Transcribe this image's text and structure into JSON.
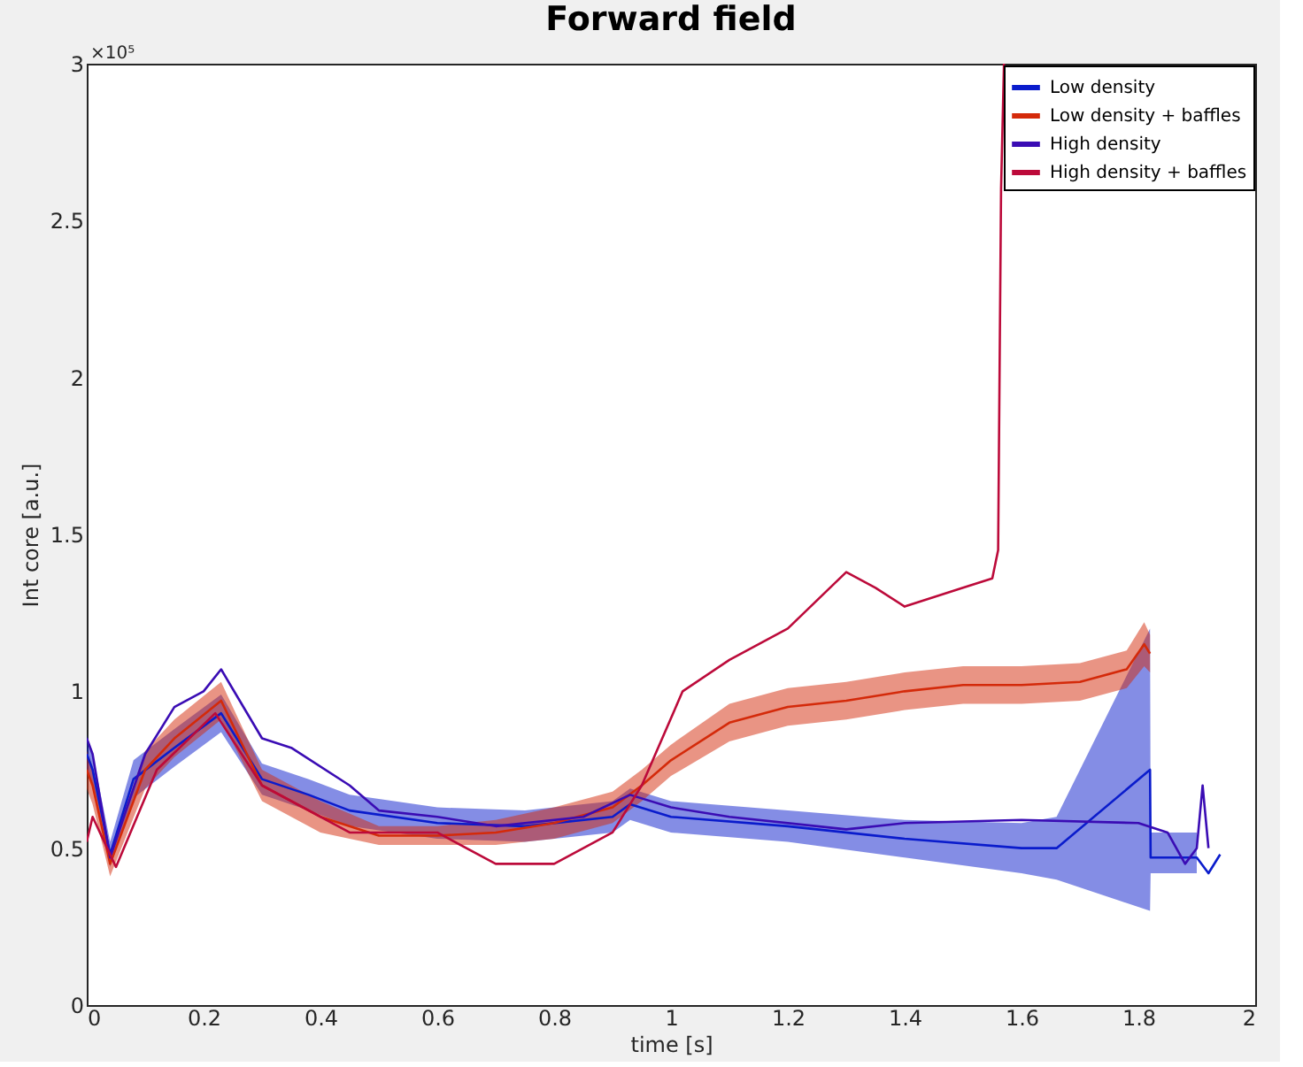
{
  "chart_data": {
    "type": "line",
    "title": "Forward field",
    "xlabel": "time [s]",
    "ylabel": "Int core [a.u.]",
    "annotations": [
      "×10⁵"
    ],
    "xlim": [
      0,
      2
    ],
    "xticks": [
      0,
      0.2,
      0.4,
      0.6,
      0.8,
      1,
      1.2,
      1.4,
      1.6,
      1.8,
      2
    ],
    "ylim": [
      0,
      3
    ],
    "yticks": [
      0,
      0.5,
      1,
      1.5,
      2,
      2.5,
      3
    ],
    "grid": false,
    "legend": "top right",
    "series": [
      {
        "name": "Low density",
        "color": "#0a1ccc",
        "x": [
          0,
          0.01,
          0.04,
          0.08,
          0.15,
          0.23,
          0.3,
          0.38,
          0.45,
          0.6,
          0.75,
          0.9,
          0.93,
          1.0,
          1.2,
          1.4,
          1.6,
          1.66,
          1.82,
          1.821,
          1.9,
          1.92,
          1.94
        ],
        "values": [
          0.8,
          0.75,
          0.48,
          0.72,
          0.82,
          0.93,
          0.72,
          0.67,
          0.62,
          0.58,
          0.57,
          0.6,
          0.64,
          0.6,
          0.57,
          0.53,
          0.5,
          0.5,
          0.75,
          0.47,
          0.47,
          0.42,
          0.48
        ],
        "lower": [
          0.74,
          0.7,
          0.44,
          0.66,
          0.76,
          0.87,
          0.67,
          0.62,
          0.57,
          0.53,
          0.52,
          0.55,
          0.59,
          0.55,
          0.52,
          0.47,
          0.42,
          0.4,
          0.3,
          0.42,
          0.42,
          null,
          null
        ],
        "upper": [
          0.86,
          0.8,
          0.52,
          0.78,
          0.88,
          0.99,
          0.77,
          0.72,
          0.67,
          0.63,
          0.62,
          0.65,
          0.69,
          0.65,
          0.62,
          0.59,
          0.58,
          0.6,
          1.2,
          0.55,
          0.55,
          null,
          null
        ]
      },
      {
        "name": "Low density + baffles",
        "color": "#d42a0a",
        "x": [
          0,
          0.01,
          0.04,
          0.1,
          0.15,
          0.23,
          0.3,
          0.4,
          0.5,
          0.6,
          0.7,
          0.8,
          0.9,
          0.95,
          1.0,
          1.1,
          1.2,
          1.3,
          1.4,
          1.5,
          1.6,
          1.7,
          1.78,
          1.81,
          1.82
        ],
        "values": [
          0.75,
          0.7,
          0.45,
          0.75,
          0.85,
          0.97,
          0.7,
          0.6,
          0.54,
          0.54,
          0.55,
          0.58,
          0.63,
          0.7,
          0.78,
          0.9,
          0.95,
          0.97,
          1.0,
          1.02,
          1.02,
          1.03,
          1.07,
          1.15,
          1.12
        ],
        "lower": [
          0.69,
          0.64,
          0.41,
          0.69,
          0.79,
          0.91,
          0.65,
          0.55,
          0.51,
          0.51,
          0.51,
          0.53,
          0.58,
          0.65,
          0.73,
          0.84,
          0.89,
          0.91,
          0.94,
          0.96,
          0.96,
          0.97,
          1.01,
          1.08,
          1.06
        ],
        "upper": [
          0.81,
          0.76,
          0.49,
          0.81,
          0.91,
          1.03,
          0.75,
          0.65,
          0.57,
          0.57,
          0.59,
          0.63,
          0.68,
          0.75,
          0.83,
          0.96,
          1.01,
          1.03,
          1.06,
          1.08,
          1.08,
          1.09,
          1.13,
          1.22,
          1.18
        ]
      },
      {
        "name": "High density",
        "color": "#3a0cb4",
        "x": [
          0,
          0.01,
          0.04,
          0.1,
          0.15,
          0.2,
          0.23,
          0.3,
          0.35,
          0.45,
          0.5,
          0.6,
          0.7,
          0.85,
          0.93,
          1.0,
          1.1,
          1.3,
          1.4,
          1.6,
          1.8,
          1.85,
          1.88,
          1.9,
          1.91,
          1.92
        ],
        "values": [
          0.85,
          0.8,
          0.47,
          0.8,
          0.95,
          1.0,
          1.07,
          0.85,
          0.82,
          0.7,
          0.62,
          0.6,
          0.57,
          0.6,
          0.67,
          0.63,
          0.6,
          0.56,
          0.58,
          0.59,
          0.58,
          0.55,
          0.45,
          0.5,
          0.7,
          0.5
        ]
      },
      {
        "name": "High density + baffles",
        "color": "#bc0a3a",
        "x": [
          0,
          0.01,
          0.05,
          0.12,
          0.22,
          0.3,
          0.45,
          0.6,
          0.7,
          0.8,
          0.9,
          0.95,
          1.02,
          1.1,
          1.2,
          1.3,
          1.35,
          1.4,
          1.5,
          1.55,
          1.56,
          1.565,
          1.57
        ],
        "values": [
          0.52,
          0.6,
          0.44,
          0.75,
          0.93,
          0.7,
          0.55,
          0.55,
          0.45,
          0.45,
          0.55,
          0.7,
          1.0,
          1.1,
          1.2,
          1.38,
          1.33,
          1.27,
          1.33,
          1.36,
          1.45,
          2.6,
          3.0
        ]
      }
    ]
  }
}
